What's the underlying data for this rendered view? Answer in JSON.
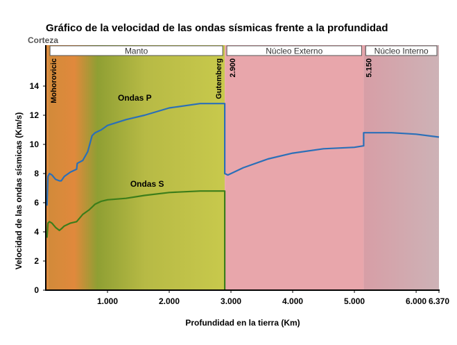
{
  "chart_data": {
    "type": "line",
    "title": "Gráfico de la velocidad de las ondas sísmicas frente a la profundidad",
    "xlabel": "Profundidad en la tierra (Km)",
    "ylabel": "Velocidad de las ondas sísmicas (Km/s)",
    "xlim": [
      0,
      6370
    ],
    "ylim": [
      0,
      16
    ],
    "x_ticks": [
      {
        "value": 1000,
        "label": "1.000"
      },
      {
        "value": 2000,
        "label": "2.000"
      },
      {
        "value": 3000,
        "label": "3.000"
      },
      {
        "value": 4000,
        "label": "4.000"
      },
      {
        "value": 5000,
        "label": "5.000"
      },
      {
        "value": 6000,
        "label": "6.000"
      },
      {
        "value": 6370,
        "label": "6.370"
      }
    ],
    "y_ticks": [
      {
        "value": 0,
        "label": "0"
      },
      {
        "value": 2,
        "label": "2"
      },
      {
        "value": 4,
        "label": "4"
      },
      {
        "value": 6,
        "label": "6"
      },
      {
        "value": 8,
        "label": "8"
      },
      {
        "value": 10,
        "label": "10"
      },
      {
        "value": 12,
        "label": "12"
      },
      {
        "value": 14,
        "label": "14"
      }
    ],
    "layers": [
      {
        "name": "Corteza",
        "from": 0,
        "to": 35
      },
      {
        "name": "Manto",
        "from": 35,
        "to": 2900
      },
      {
        "name": "Núcleo Externo",
        "from": 2900,
        "to": 5150
      },
      {
        "name": "Núcleo Interno",
        "from": 5150,
        "to": 6370
      }
    ],
    "boundaries": [
      {
        "name": "Mohorovicic",
        "depth": 35,
        "value_label": ""
      },
      {
        "name": "Gutemberg",
        "depth": 2900,
        "value_label": "2.900"
      },
      {
        "name": "",
        "depth": 5150,
        "value_label": "5.150"
      }
    ],
    "series": [
      {
        "name": "Ondas P",
        "color": "#2a6fb8",
        "x": [
          20,
          35,
          60,
          100,
          160,
          220,
          250,
          300,
          400,
          500,
          510,
          600,
          680,
          750,
          800,
          900,
          1000,
          1300,
          1600,
          2000,
          2500,
          2900,
          2900,
          2950,
          3200,
          3600,
          4000,
          4500,
          5000,
          5150,
          5150,
          5200,
          5600,
          6000,
          6370
        ],
        "y": [
          5.8,
          7.8,
          8.0,
          7.9,
          7.6,
          7.5,
          7.5,
          7.8,
          8.1,
          8.3,
          8.7,
          8.9,
          9.5,
          10.6,
          10.8,
          11.0,
          11.3,
          11.7,
          12.0,
          12.5,
          12.8,
          12.8,
          8.0,
          7.9,
          8.4,
          9.0,
          9.4,
          9.7,
          9.8,
          9.9,
          10.8,
          10.8,
          10.8,
          10.7,
          10.5
        ]
      },
      {
        "name": "Ondas S",
        "color": "#3c7d1a",
        "x": [
          20,
          35,
          60,
          100,
          160,
          220,
          250,
          300,
          400,
          500,
          600,
          700,
          750,
          800,
          900,
          1000,
          1300,
          1600,
          2000,
          2500,
          2900,
          2900
        ],
        "y": [
          3.6,
          4.6,
          4.7,
          4.6,
          4.3,
          4.1,
          4.2,
          4.4,
          4.6,
          4.7,
          5.2,
          5.5,
          5.7,
          5.9,
          6.1,
          6.2,
          6.3,
          6.5,
          6.7,
          6.8,
          6.8,
          0
        ]
      }
    ],
    "series_labels": [
      {
        "text": "Ondas P",
        "x": 1000,
        "y": 13.0
      },
      {
        "text": "Ondas S",
        "x": 1200,
        "y": 7.1
      }
    ]
  }
}
